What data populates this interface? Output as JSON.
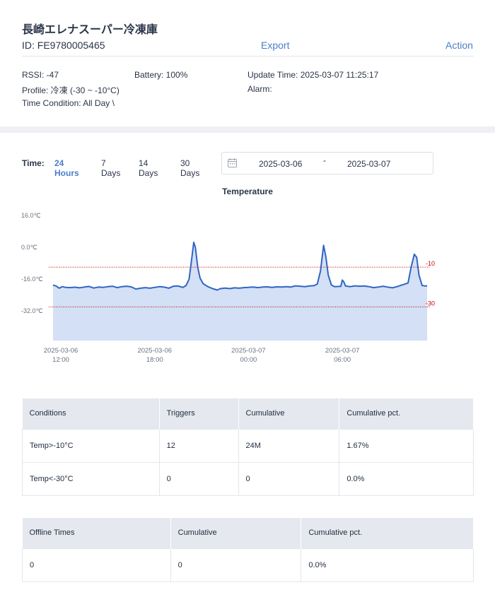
{
  "device": {
    "title": "長崎エレナスーパー冷凍庫",
    "id_label": "ID: FE9780005465",
    "export_label": "Export",
    "action_label": "Action"
  },
  "info": {
    "rssi": "RSSI: -47",
    "battery": "Battery: 100%",
    "update_time": "Update Time: 2025-03-07 11:25:17",
    "profile": "Profile: 冷凍 (-30 ~ -10°C)",
    "alarm": "Alarm:",
    "time_condition": "Time Condition: All Day \\"
  },
  "time_filter": {
    "label": "Time:",
    "options": [
      "24 Hours",
      "7 Days",
      "14 Days",
      "30 Days"
    ],
    "selected": "24 Hours",
    "start_date": "2025-03-06",
    "separator": "-",
    "end_date": "2025-03-07"
  },
  "chart_data": {
    "type": "area",
    "title": "Temperature",
    "ylim": [
      -40,
      16
    ],
    "y_ticks": [
      {
        "value": 16,
        "label": "16.0℃"
      },
      {
        "value": 0,
        "label": "0.0℃"
      },
      {
        "value": -16,
        "label": "-16.0℃"
      },
      {
        "value": -32,
        "label": "-32.0℃"
      }
    ],
    "x_ticks": [
      {
        "hour": 12,
        "label": [
          "2025-03-06",
          "12:00"
        ]
      },
      {
        "hour": 18,
        "label": [
          "2025-03-06",
          "18:00"
        ]
      },
      {
        "hour": 24,
        "label": [
          "2025-03-07",
          "00:00"
        ]
      },
      {
        "hour": 30,
        "label": [
          "2025-03-07",
          "06:00"
        ]
      }
    ],
    "x_range_hours": [
      11.5,
      35.42
    ],
    "thresholds": [
      {
        "value": -10,
        "label": "-10",
        "color": "#cc0000"
      },
      {
        "value": -30,
        "label": "-30",
        "color": "#cc0000"
      }
    ],
    "series": [
      {
        "line_color": "#2f66c4",
        "fill_color": "#d3e0f5",
        "points": [
          [
            11.5,
            -19
          ],
          [
            11.7,
            -19.5
          ],
          [
            11.9,
            -20.6
          ],
          [
            12.1,
            -19.8
          ],
          [
            12.3,
            -20.2
          ],
          [
            12.6,
            -20.3
          ],
          [
            12.9,
            -20.1
          ],
          [
            13.2,
            -20.4
          ],
          [
            13.5,
            -20
          ],
          [
            13.8,
            -19.7
          ],
          [
            14.1,
            -20.5
          ],
          [
            14.4,
            -20
          ],
          [
            14.7,
            -20.2
          ],
          [
            15.0,
            -19.8
          ],
          [
            15.3,
            -19.6
          ],
          [
            15.6,
            -20.3
          ],
          [
            15.9,
            -19.8
          ],
          [
            16.2,
            -19.6
          ],
          [
            16.5,
            -19.9
          ],
          [
            16.8,
            -21
          ],
          [
            17.1,
            -20.6
          ],
          [
            17.4,
            -20.3
          ],
          [
            17.7,
            -20.6
          ],
          [
            18.0,
            -20.2
          ],
          [
            18.3,
            -19.8
          ],
          [
            18.6,
            -20
          ],
          [
            18.9,
            -20.6
          ],
          [
            19.2,
            -19.6
          ],
          [
            19.5,
            -19.5
          ],
          [
            19.8,
            -20.2
          ],
          [
            20.0,
            -19.3
          ],
          [
            20.2,
            -16
          ],
          [
            20.35,
            -7
          ],
          [
            20.5,
            2.5
          ],
          [
            20.6,
            0
          ],
          [
            20.75,
            -10
          ],
          [
            20.9,
            -15.5
          ],
          [
            21.1,
            -18.3
          ],
          [
            21.4,
            -19.8
          ],
          [
            21.7,
            -20.8
          ],
          [
            22.0,
            -21.5
          ],
          [
            22.2,
            -20.8
          ],
          [
            22.5,
            -20.5
          ],
          [
            22.8,
            -20.8
          ],
          [
            23.1,
            -20.4
          ],
          [
            23.4,
            -20.6
          ],
          [
            23.7,
            -20.3
          ],
          [
            24.0,
            -20.2
          ],
          [
            24.3,
            -20
          ],
          [
            24.6,
            -20.3
          ],
          [
            24.9,
            -20
          ],
          [
            25.2,
            -19.9
          ],
          [
            25.5,
            -20.2
          ],
          [
            25.8,
            -19.9
          ],
          [
            26.1,
            -20
          ],
          [
            26.4,
            -19.8
          ],
          [
            26.7,
            -20
          ],
          [
            27.0,
            -19.4
          ],
          [
            27.3,
            -19.6
          ],
          [
            27.6,
            -19.8
          ],
          [
            27.9,
            -19.5
          ],
          [
            28.2,
            -19.3
          ],
          [
            28.4,
            -18.5
          ],
          [
            28.6,
            -12
          ],
          [
            28.8,
            1
          ],
          [
            28.95,
            -5
          ],
          [
            29.1,
            -14
          ],
          [
            29.3,
            -19
          ],
          [
            29.5,
            -19.8
          ],
          [
            29.8,
            -19.7
          ],
          [
            29.9,
            -19.7
          ],
          [
            30.0,
            -16.5
          ],
          [
            30.1,
            -17.5
          ],
          [
            30.2,
            -19.5
          ],
          [
            30.5,
            -19.8
          ],
          [
            30.8,
            -19.4
          ],
          [
            31.1,
            -19.6
          ],
          [
            31.4,
            -19.5
          ],
          [
            31.7,
            -19.8
          ],
          [
            32.0,
            -20.3
          ],
          [
            32.3,
            -20
          ],
          [
            32.6,
            -19.6
          ],
          [
            32.9,
            -20
          ],
          [
            33.2,
            -20.4
          ],
          [
            33.5,
            -19.8
          ],
          [
            34.2,
            -18
          ],
          [
            34.4,
            -10
          ],
          [
            34.6,
            -3.5
          ],
          [
            34.75,
            -5
          ],
          [
            34.9,
            -14
          ],
          [
            35.1,
            -19.2
          ],
          [
            35.3,
            -19.5
          ],
          [
            35.42,
            -19.4
          ]
        ]
      }
    ]
  },
  "condition_table": {
    "headers": [
      "Conditions",
      "Triggers",
      "Cumulative",
      "Cumulative pct."
    ],
    "rows": [
      [
        "Temp>-10°C",
        "12",
        "24M",
        "1.67%"
      ],
      [
        "Temp<-30°C",
        "0",
        "0",
        "0.0%"
      ]
    ]
  },
  "offline_table": {
    "headers": [
      "Offline Times",
      "Cumulative",
      "Cumulative pct."
    ],
    "rows": [
      [
        "0",
        "0",
        "0.0%"
      ]
    ]
  }
}
